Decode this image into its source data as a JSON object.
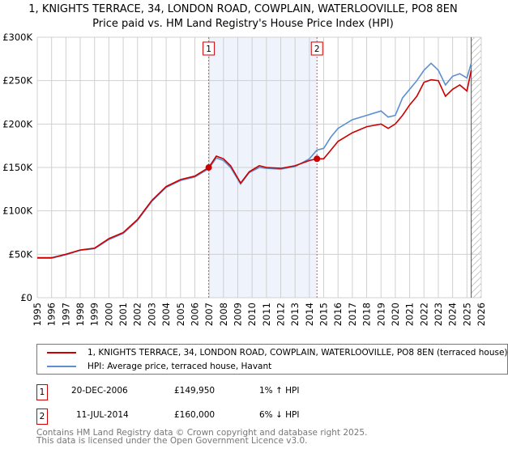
{
  "title": "1, KNIGHTS TERRACE, 34, LONDON ROAD, COWPLAIN, WATERLOOVILLE, PO8 8EN",
  "subtitle": "Price paid vs. HM Land Registry's House Price Index (HPI)",
  "chart_data": {
    "type": "line",
    "title": "1, KNIGHTS TERRACE, 34, LONDON ROAD, COWPLAIN, WATERLOOVILLE, PO8 8EN",
    "subtitle": "Price paid vs. HM Land Registry's House Price Index (HPI)",
    "xlim": [
      1995,
      2026
    ],
    "ylim": [
      0,
      300000
    ],
    "yticks": [
      {
        "v": 0,
        "label": "£0"
      },
      {
        "v": 50000,
        "label": "£50K"
      },
      {
        "v": 100000,
        "label": "£100K"
      },
      {
        "v": 150000,
        "label": "£150K"
      },
      {
        "v": 200000,
        "label": "£200K"
      },
      {
        "v": 250000,
        "label": "£250K"
      },
      {
        "v": 300000,
        "label": "£300K"
      }
    ],
    "xticks": [
      "1995",
      "1996",
      "1997",
      "1998",
      "1999",
      "2000",
      "2001",
      "2002",
      "2003",
      "2004",
      "2005",
      "2006",
      "2007",
      "2008",
      "2009",
      "2010",
      "2011",
      "2012",
      "2013",
      "2014",
      "2015",
      "2016",
      "2017",
      "2018",
      "2019",
      "2020",
      "2021",
      "2022",
      "2023",
      "2024",
      "2025",
      "2026"
    ],
    "grid": true,
    "shaded_period": [
      2006.97,
      2014.53
    ],
    "forecast_hatch_from": 2025.3,
    "series": [
      {
        "name": "1, KNIGHTS TERRACE, 34, LONDON ROAD, COWPLAIN, WATERLOOVILLE, PO8 8EN (terraced house)",
        "color": "#cc0000",
        "x": [
          1995,
          1996,
          1997,
          1998,
          1999,
          2000,
          2001,
          2002,
          2003,
          2004,
          2005,
          2006,
          2006.97,
          2007.5,
          2008,
          2008.5,
          2009.2,
          2009.8,
          2010.5,
          2011,
          2012,
          2013,
          2014,
          2014.53,
          2015,
          2015.5,
          2016,
          2017,
          2018,
          2019,
          2019.5,
          2020,
          2020.5,
          2021,
          2021.5,
          2022,
          2022.5,
          2023,
          2023.5,
          2024,
          2024.5,
          2025,
          2025.3
        ],
        "y": [
          46000,
          46000,
          50000,
          55000,
          57000,
          68000,
          75000,
          90000,
          112000,
          128000,
          136000,
          140000,
          149950,
          163000,
          160000,
          152000,
          132000,
          145000,
          152000,
          150000,
          149000,
          152000,
          158000,
          160000,
          160000,
          170000,
          180000,
          190000,
          197000,
          200000,
          195000,
          200000,
          210000,
          222000,
          232000,
          248000,
          251000,
          250000,
          232000,
          240000,
          245000,
          238000,
          262000
        ]
      },
      {
        "name": "HPI: Average price, terraced house, Havant",
        "color": "#5b8fd0",
        "x": [
          1995,
          1996,
          1997,
          1998,
          1999,
          2000,
          2001,
          2002,
          2003,
          2004,
          2005,
          2006,
          2006.97,
          2007.5,
          2008,
          2008.5,
          2009.2,
          2009.8,
          2010.5,
          2011,
          2012,
          2013,
          2014,
          2014.53,
          2015,
          2015.5,
          2016,
          2017,
          2018,
          2019,
          2019.5,
          2020,
          2020.5,
          2021,
          2021.5,
          2022,
          2022.5,
          2023,
          2023.5,
          2024,
          2024.5,
          2025,
          2025.3
        ],
        "y": [
          45500,
          45500,
          49500,
          54500,
          56500,
          67000,
          74000,
          89000,
          111000,
          127000,
          135000,
          139000,
          148500,
          161000,
          158000,
          150000,
          131000,
          144000,
          150000,
          149000,
          148000,
          151000,
          160000,
          170000,
          172000,
          185000,
          195000,
          205000,
          210000,
          215000,
          208000,
          210000,
          230000,
          240000,
          250000,
          262000,
          270000,
          262000,
          245000,
          255000,
          258000,
          253000,
          270000
        ]
      }
    ],
    "sales": [
      {
        "label": "1",
        "x": 2006.97,
        "y": 149950
      },
      {
        "label": "2",
        "x": 2014.53,
        "y": 160000
      }
    ]
  },
  "legend": {
    "property": "1, KNIGHTS TERRACE, 34, LONDON ROAD, COWPLAIN, WATERLOOVILLE, PO8 8EN (terraced house)",
    "hpi": "HPI: Average price, terraced house, Havant"
  },
  "transactions": [
    {
      "num": "1",
      "date": "20-DEC-2006",
      "price": "£149,950",
      "hpi": "1% ↑ HPI"
    },
    {
      "num": "2",
      "date": "11-JUL-2014",
      "price": "£160,000",
      "hpi": "6% ↓ HPI"
    }
  ],
  "footer": {
    "line1": "Contains HM Land Registry data © Crown copyright and database right 2025.",
    "line2": "This data is licensed under the Open Government Licence v3.0."
  }
}
